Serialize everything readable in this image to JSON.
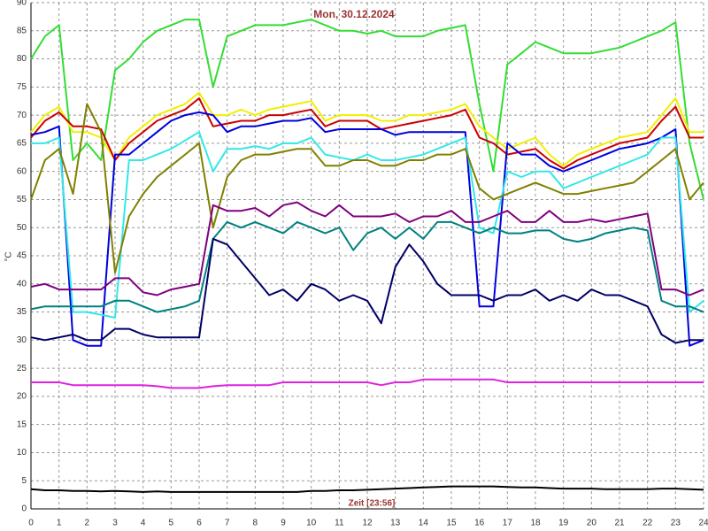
{
  "chart_data": {
    "type": "line",
    "title": "Mon, 30.12.2024",
    "xlabel": "Zeit [23:56]",
    "ylabel": "°C",
    "x": [
      0,
      0.5,
      1,
      1.5,
      2,
      2.5,
      3,
      3.5,
      4,
      4.5,
      5,
      5.5,
      6,
      6.5,
      7,
      7.5,
      8,
      8.5,
      9,
      9.5,
      10,
      10.5,
      11,
      11.5,
      12,
      12.5,
      13,
      13.5,
      14,
      14.5,
      15,
      15.5,
      16,
      16.5,
      17,
      17.5,
      18,
      18.5,
      19,
      19.5,
      20,
      20.5,
      21,
      21.5,
      22,
      22.5,
      23,
      23.5,
      24
    ],
    "xlim": [
      0,
      24
    ],
    "xticks": [
      0,
      1,
      2,
      3,
      4,
      5,
      6,
      7,
      8,
      9,
      10,
      11,
      12,
      13,
      14,
      15,
      16,
      17,
      18,
      19,
      20,
      21,
      22,
      23,
      24
    ],
    "ylim": [
      0,
      90
    ],
    "yticks": [
      0,
      5,
      10,
      15,
      20,
      25,
      30,
      35,
      40,
      45,
      50,
      55,
      60,
      65,
      70,
      75,
      80,
      85,
      90
    ],
    "grid": true,
    "series": [
      {
        "color": "#33dd33",
        "values": [
          80,
          84,
          86,
          62,
          65,
          62,
          78,
          80,
          83,
          85,
          86,
          87,
          87,
          75,
          84,
          85,
          86,
          86,
          86,
          86.5,
          87,
          86,
          85,
          85,
          84.5,
          85,
          84,
          84,
          84,
          85,
          85.5,
          86,
          72,
          60,
          79,
          81,
          83,
          82,
          81,
          81,
          81,
          81.5,
          82,
          83,
          84,
          85,
          86.5,
          65,
          55
        ]
      },
      {
        "color": "#f0f000",
        "values": [
          67,
          70,
          71.5,
          67,
          67,
          66,
          62,
          66,
          68,
          70,
          71,
          72,
          74,
          70,
          70,
          71,
          70,
          71,
          71.5,
          72,
          72.5,
          69,
          70,
          70,
          70,
          69,
          69,
          70,
          70,
          70.5,
          71,
          72,
          68,
          66,
          64,
          65,
          66,
          63,
          61,
          63,
          64,
          65,
          66,
          66.5,
          67,
          70,
          73,
          67,
          67
        ]
      },
      {
        "color": "#cc0000",
        "values": [
          66,
          69,
          70.5,
          68,
          68,
          67.5,
          62,
          65,
          67,
          69,
          70,
          71,
          73,
          68,
          68.5,
          69,
          69,
          70,
          70,
          70.5,
          71,
          68,
          69,
          69,
          69,
          67.5,
          68,
          68.5,
          69,
          69.5,
          70,
          71,
          66,
          65,
          63,
          63.5,
          64,
          62,
          60.5,
          62,
          63,
          64,
          65,
          65.5,
          66,
          69,
          71.5,
          66,
          66
        ]
      },
      {
        "color": "#0000dd",
        "values": [
          66.5,
          67,
          68,
          30,
          29,
          29,
          63,
          63,
          65,
          67,
          69,
          70,
          70.5,
          70,
          67,
          68,
          68,
          68.5,
          69,
          69,
          69.5,
          67,
          67.5,
          67.5,
          67.5,
          67.5,
          66.5,
          67,
          67,
          67,
          67,
          67,
          36,
          36,
          65,
          63,
          63,
          61,
          60,
          61,
          62,
          63,
          64,
          64.5,
          65,
          66,
          67.5,
          29,
          30
        ]
      },
      {
        "color": "#33e8e8",
        "values": [
          65,
          65,
          66,
          35,
          35,
          34.5,
          34,
          62,
          62,
          63,
          64,
          65.5,
          67,
          60,
          64,
          64,
          64.5,
          64,
          65,
          65,
          66,
          63,
          62.5,
          62,
          63,
          62,
          62,
          62.5,
          63,
          64,
          65,
          66,
          50,
          49,
          60,
          59,
          60,
          60,
          57,
          58,
          59,
          60,
          61,
          62,
          63,
          66,
          66,
          35,
          37
        ]
      },
      {
        "color": "#808000",
        "values": [
          55,
          62,
          64,
          56,
          72,
          67,
          42,
          52,
          56,
          59,
          61,
          63,
          65,
          50,
          59,
          62,
          63,
          63,
          63.5,
          64,
          64,
          61,
          61,
          62,
          62,
          61,
          61,
          62,
          62,
          63,
          63,
          64,
          57,
          55,
          56,
          57,
          58,
          57,
          56,
          56,
          56.5,
          57,
          57.5,
          58,
          60,
          62,
          64,
          55,
          58
        ]
      },
      {
        "color": "#800080",
        "values": [
          39.5,
          40,
          39,
          39,
          39,
          39,
          41,
          41,
          38.5,
          38,
          39,
          39.5,
          40,
          54,
          53,
          53,
          53.5,
          52,
          54,
          54.5,
          53,
          52,
          54,
          52,
          52,
          52,
          52.5,
          51,
          52,
          52,
          53,
          51,
          51,
          52,
          53,
          51,
          51,
          53,
          51,
          51,
          51.5,
          51,
          51.5,
          52,
          52.5,
          39,
          39,
          38,
          39
        ]
      },
      {
        "color": "#008080",
        "values": [
          35.5,
          36,
          36,
          36,
          36,
          36,
          37,
          37,
          36,
          35,
          35.5,
          36,
          37,
          48,
          51,
          50,
          51,
          50,
          49,
          51,
          50,
          49,
          50,
          46,
          49,
          50,
          48,
          50,
          48,
          51,
          51,
          50,
          49,
          50,
          49,
          49,
          49.5,
          49.5,
          48,
          47.5,
          48,
          49,
          49.5,
          50,
          49.5,
          37,
          36,
          36,
          35
        ]
      },
      {
        "color": "#000066",
        "values": [
          30.5,
          30,
          30.5,
          31,
          30,
          30,
          32,
          32,
          31,
          30.5,
          30.5,
          30.5,
          30.5,
          48,
          47,
          44,
          41,
          38,
          39,
          37,
          40,
          39,
          37,
          38,
          37,
          33,
          43,
          47,
          44,
          40,
          38,
          38,
          38,
          37,
          38,
          38,
          39,
          37,
          38,
          37,
          39,
          38,
          38,
          37,
          36,
          31,
          29.5,
          30,
          30
        ]
      },
      {
        "color": "#dd22dd",
        "values": [
          22.5,
          22.5,
          22.5,
          22,
          22,
          22,
          22,
          22,
          22,
          21.8,
          21.5,
          21.5,
          21.5,
          21.8,
          22,
          22,
          22,
          22,
          22.5,
          22.5,
          22.5,
          22.5,
          22.5,
          22.5,
          22.5,
          22,
          22.5,
          22.5,
          23,
          23,
          23,
          23,
          23,
          23,
          22.5,
          22.5,
          22.5,
          22.5,
          22.5,
          22.5,
          22.5,
          22.5,
          22.5,
          22.5,
          22.5,
          22.5,
          22.5,
          22.5,
          22.5
        ]
      },
      {
        "color": "#000000",
        "values": [
          3.5,
          3.3,
          3.3,
          3.2,
          3.2,
          3.1,
          3.2,
          3.1,
          3,
          3.1,
          3,
          3,
          3,
          3,
          3,
          3,
          3,
          3,
          3,
          3,
          3.2,
          3.2,
          3.3,
          3.3,
          3.4,
          3.5,
          3.6,
          3.7,
          3.8,
          3.9,
          4,
          4,
          4,
          4,
          3.9,
          3.8,
          3.8,
          3.7,
          3.6,
          3.6,
          3.6,
          3.5,
          3.5,
          3.5,
          3.5,
          3.6,
          3.6,
          3.5,
          3.4
        ]
      }
    ]
  }
}
